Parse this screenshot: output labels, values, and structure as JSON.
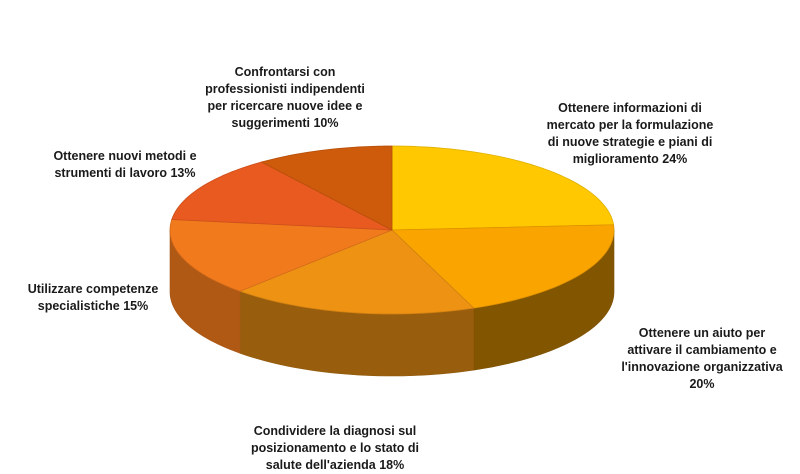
{
  "chart_data": {
    "type": "pie",
    "title": "",
    "series": [
      {
        "values": [
          24,
          20,
          18,
          15,
          13,
          10
        ]
      }
    ],
    "categories": [
      "Ottenere informazioni di mercato per la formulazione di nuove strategie e piani di miglioramento",
      "Ottenere un aiuto per attivare il cambiamento e l'innovazione organizzativa",
      "Condividere la diagnosi sul posizionamento e lo stato di salute dell'azienda",
      "Utilizzare competenze specialistiche",
      "Ottenere nuovi metodi e strumenti di lavoro",
      "Confrontarsi con professionisti indipendenti per ricercare nuove idee e suggerimenti"
    ],
    "labels": [
      "Ottenere informazioni di\nmercato per la formulazione\ndi nuove strategie e piani di\nmiglioramento 24%",
      "Ottenere un aiuto per\nattivare il cambiamento e\nl'innovazione organizzativa\n20%",
      "Condividere la diagnosi sul\nposizionamento e lo stato di\nsalute dell'azienda 18%",
      "Utilizzare competenze\nspecialistiche 15%",
      "Ottenere nuovi metodi e\nstrumenti di lavoro 13%",
      "Confrontarsi con\nprofessionisti indipendenti\nper ricercare nuove idee e\nsuggerimenti  10%"
    ],
    "colors": [
      "#FFC800",
      "#FAA400",
      "#EE9214",
      "#F17A1D",
      "#E85A1F",
      "#CE5A0B"
    ],
    "style": "3d",
    "legend": "none"
  }
}
